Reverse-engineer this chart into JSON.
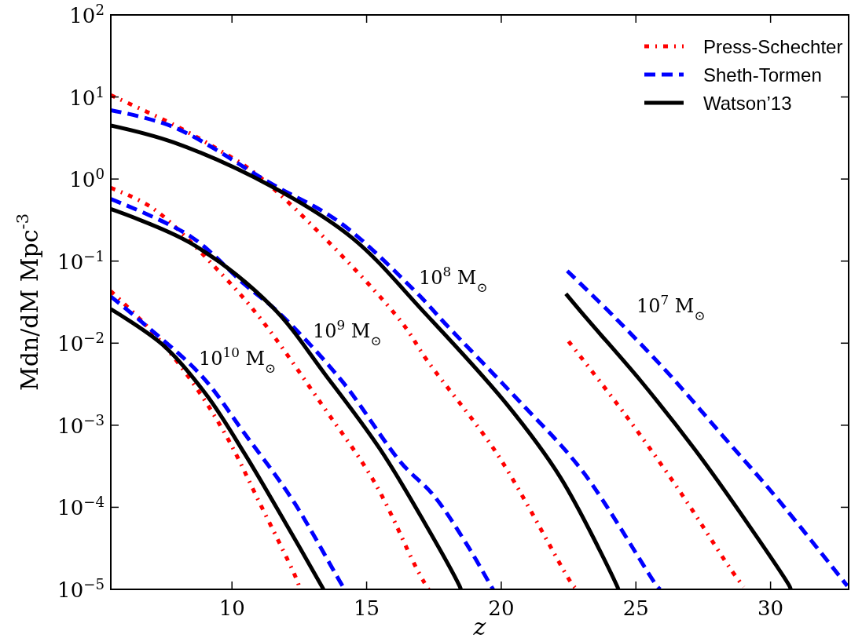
{
  "chart_data": {
    "type": "line",
    "xlabel": "z",
    "ylabel": "Mdn/dM Mpc$^{-3}$",
    "log": "y",
    "grid": false,
    "legend": "top right",
    "xlim": [
      5.5,
      32.9
    ],
    "xticks": [
      10,
      15,
      20,
      25,
      30
    ],
    "ylim": [
      1e-05,
      100
    ],
    "yticks": [
      {
        "value": 1e-05,
        "label": "10$^{−5}$"
      },
      {
        "value": 0.0001,
        "label": "10$^{−4}$"
      },
      {
        "value": 0.001,
        "label": "10$^{−3}$"
      },
      {
        "value": 0.01,
        "label": "10$^{−2}$"
      },
      {
        "value": 0.1,
        "label": "10$^{−1}$"
      },
      {
        "value": 1,
        "label": "10$^{0}$"
      },
      {
        "value": 10,
        "label": "10$^{1}$"
      },
      {
        "value": 100,
        "label": "10$^{2}$"
      }
    ],
    "series": [
      {
        "name": "Press-Schechter",
        "color": "#ff0000",
        "line_style": "dotted",
        "x": [
          5.5,
          7.83,
          9.48,
          10.87,
          13.4,
          16.3,
          17.24,
          19.86,
          22.6,
          22.8
        ],
        "values": [
          10.5,
          4.6,
          2.3,
          1.17,
          0.197,
          0.018,
          0.0062,
          0.00044,
          1.2e-05,
          1e-05
        ]
      },
      {
        "name": "Sheth-Tormen",
        "color": "#0000ff",
        "line_style": "dashed",
        "x": [
          5.5,
          7.83,
          11.48,
          13.98,
          16.8,
          17.97,
          20.47,
          23.0,
          25.78,
          25.9
        ],
        "values": [
          6.9,
          4.3,
          0.87,
          0.3,
          0.043,
          0.0166,
          0.0023,
          0.00028,
          1.1e-05,
          1e-05
        ]
      },
      {
        "name": "Watson’13",
        "color": "#000000",
        "line_style": "solid",
        "x": [
          5.5,
          7.83,
          11.48,
          14.48,
          17.1,
          20.17,
          22.2,
          24.3,
          24.35
        ],
        "values": [
          4.5,
          2.8,
          0.81,
          0.19,
          0.0245,
          0.00186,
          0.00023,
          1.1e-05,
          1e-05
        ]
      },
      {
        "color": "#ff0000",
        "line_style": "dotted",
        "x": [
          5.5,
          7.06,
          9.68,
          11.08,
          13.3,
          15.3,
          16.8,
          17.15,
          17.3
        ],
        "values": [
          0.78,
          0.44,
          0.066,
          0.0195,
          0.00186,
          0.0002,
          1.95e-05,
          1.2e-05,
          1e-05
        ]
      },
      {
        "color": "#0000ff",
        "line_style": "dashed",
        "x": [
          5.5,
          8.46,
          10.47,
          11.77,
          14.07,
          16.28,
          17.5,
          18.8,
          19.62,
          19.7
        ],
        "values": [
          0.57,
          0.2,
          0.052,
          0.023,
          0.0035,
          0.00035,
          0.000138,
          3.2e-05,
          1.1e-05,
          1e-05
        ]
      },
      {
        "color": "#000000",
        "line_style": "solid",
        "x": [
          5.5,
          8.46,
          11.48,
          13.5,
          15.5,
          17.15,
          18.45,
          18.5
        ],
        "values": [
          0.43,
          0.166,
          0.028,
          0.004,
          0.00051,
          6.5e-05,
          1.1e-05,
          1e-05
        ]
      },
      {
        "color": "#ff0000",
        "line_style": "dotted",
        "x": [
          5.5,
          7.06,
          8.46,
          9.77,
          10.99,
          12.47,
          12.5
        ],
        "values": [
          0.043,
          0.0135,
          0.0036,
          0.00076,
          0.00012,
          1.15e-05,
          1e-05
        ]
      },
      {
        "color": "#0000ff",
        "line_style": "dashed",
        "x": [
          5.5,
          6.66,
          8.87,
          10.47,
          12.27,
          14.13,
          14.2
        ],
        "values": [
          0.037,
          0.018,
          0.004,
          0.00079,
          0.00012,
          1.07e-05,
          1e-05
        ]
      },
      {
        "color": "#000000",
        "line_style": "solid",
        "x": [
          5.5,
          7.47,
          9.07,
          10.47,
          11.98,
          13.35,
          13.4
        ],
        "values": [
          0.026,
          0.0093,
          0.0023,
          0.00045,
          6.5e-05,
          1.07e-05,
          1e-05
        ]
      },
      {
        "color": "#0000ff",
        "line_style": "dashed",
        "x": [
          22.45,
          24.19,
          26.2,
          28.23,
          30.23,
          32.85
        ],
        "values": [
          0.076,
          0.021,
          0.0043,
          0.00074,
          0.00013,
          1.1e-05
        ]
      },
      {
        "color": "#000000",
        "line_style": "solid",
        "x": [
          22.4,
          23.2,
          25.2,
          27.2,
          29.2,
          30.7,
          30.75
        ],
        "values": [
          0.04,
          0.0195,
          0.0034,
          0.0005,
          6e-05,
          1.1e-05,
          1e-05
        ]
      },
      {
        "color": "#ff0000",
        "line_style": "dotted",
        "x": [
          22.5,
          24.6,
          26.6,
          28.5,
          29.0
        ],
        "values": [
          0.0105,
          0.00135,
          0.000162,
          1.8e-05,
          1.07e-05
        ]
      }
    ],
    "annotations": [
      "10$^{8}$ M$_{⊙}$",
      "10$^{7}$ M$_{⊙}$",
      "10$^{9}$ M$_{⊙}$",
      "10$^{10}$ M$_{⊙}$"
    ]
  }
}
